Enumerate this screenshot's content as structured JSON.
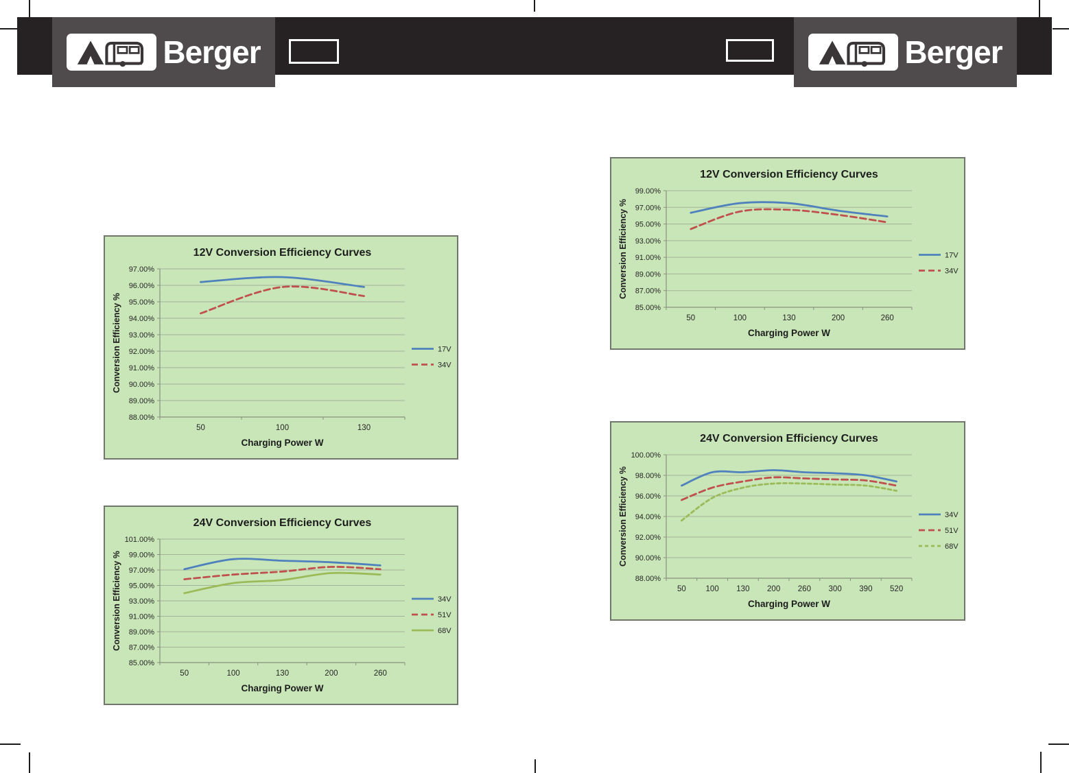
{
  "header": {
    "brand": "Berger",
    "bar_color": "#262223",
    "panel_color": "#4f4b4d"
  },
  "colors": {
    "chart_background": "#c9e6b8",
    "gridline": "#a3b399",
    "axis_line": "#87917d",
    "series_blue": "#4f81bd",
    "series_red": "#c0504d",
    "series_green": "#9bbb59",
    "text": "#262626"
  },
  "chart_data": [
    {
      "id": "12v-efficiency-left",
      "position": "left-top",
      "type": "line",
      "title": "12V Conversion Efficiency Curves",
      "xlabel": "Charging Power W",
      "ylabel": "Conversion Efficiency %",
      "categories": [
        "50",
        "100",
        "130"
      ],
      "ylim": [
        88,
        97
      ],
      "ystep": 1,
      "grid": true,
      "legend_position": "right",
      "series": [
        {
          "name": "17V",
          "color": "#4f81bd",
          "style": "solid",
          "values": [
            96.2,
            96.5,
            95.9
          ]
        },
        {
          "name": "34V",
          "color": "#c0504d",
          "style": "dashed",
          "values": [
            94.3,
            95.9,
            95.35
          ]
        }
      ]
    },
    {
      "id": "24v-efficiency-left",
      "position": "left-bottom",
      "type": "line",
      "title": "24V Conversion Efficiency Curves",
      "xlabel": "Charging Power W",
      "ylabel": "Conversion Efficiency %",
      "categories": [
        "50",
        "100",
        "130",
        "200",
        "260"
      ],
      "ylim": [
        85,
        101
      ],
      "ystep": 2,
      "grid": true,
      "legend_position": "right",
      "series": [
        {
          "name": "34V",
          "color": "#4f81bd",
          "style": "solid",
          "values": [
            97.1,
            98.4,
            98.2,
            98.0,
            97.6
          ]
        },
        {
          "name": "51V",
          "color": "#c0504d",
          "style": "dashed",
          "values": [
            95.8,
            96.4,
            96.8,
            97.4,
            97.1
          ]
        },
        {
          "name": "68V",
          "color": "#9bbb59",
          "style": "solid",
          "values": [
            94.0,
            95.3,
            95.7,
            96.6,
            96.4
          ]
        }
      ]
    },
    {
      "id": "12v-efficiency-right",
      "position": "right-top",
      "type": "line",
      "title": "12V Conversion Efficiency Curves",
      "xlabel": "Charging Power W",
      "ylabel": "Conversion Efficiency %",
      "categories": [
        "50",
        "100",
        "130",
        "200",
        "260"
      ],
      "ylim": [
        85,
        99
      ],
      "ystep": 2,
      "grid": true,
      "legend_position": "right",
      "series": [
        {
          "name": "17V",
          "color": "#4f81bd",
          "style": "solid",
          "values": [
            96.35,
            97.5,
            97.5,
            96.6,
            95.9
          ]
        },
        {
          "name": "34V",
          "color": "#c0504d",
          "style": "dashed",
          "values": [
            94.4,
            96.5,
            96.7,
            96.1,
            95.2
          ]
        }
      ]
    },
    {
      "id": "24v-efficiency-right",
      "position": "right-bottom",
      "type": "line",
      "title": "24V Conversion Efficiency Curves",
      "xlabel": "Charging Power W",
      "ylabel": "Conversion Efficiency %",
      "categories": [
        "50",
        "100",
        "130",
        "200",
        "260",
        "300",
        "390",
        "520"
      ],
      "ylim": [
        88,
        100
      ],
      "ystep": 2,
      "grid": true,
      "legend_position": "right",
      "series": [
        {
          "name": "34V",
          "color": "#4f81bd",
          "style": "solid",
          "values": [
            97.0,
            98.3,
            98.3,
            98.5,
            98.3,
            98.2,
            98.0,
            97.4
          ]
        },
        {
          "name": "51V",
          "color": "#c0504d",
          "style": "dashed",
          "values": [
            95.6,
            96.8,
            97.4,
            97.8,
            97.7,
            97.6,
            97.5,
            97.0
          ]
        },
        {
          "name": "68V",
          "color": "#9bbb59",
          "style": "shortdash",
          "values": [
            93.6,
            95.8,
            96.8,
            97.2,
            97.2,
            97.1,
            97.0,
            96.5
          ]
        }
      ]
    }
  ]
}
